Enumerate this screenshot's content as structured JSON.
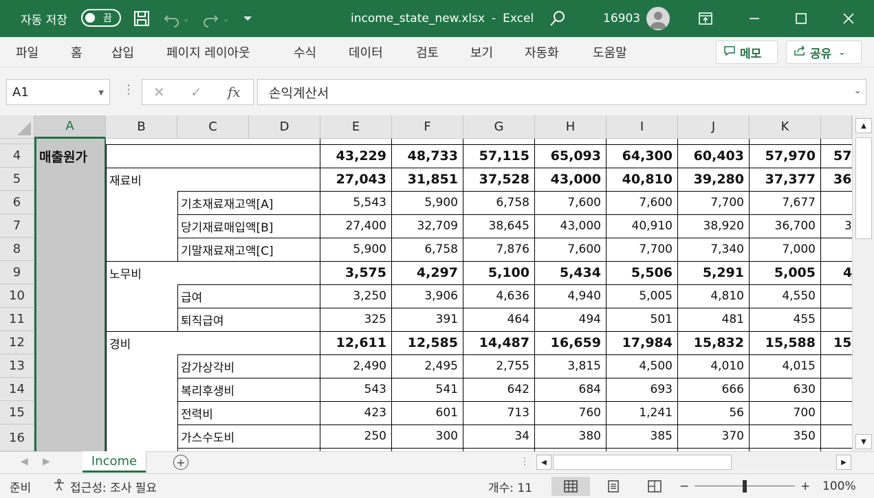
{
  "titlebar": {
    "autosave_label": "자동 저장",
    "autosave_state": "끔",
    "filename": "income_state_new.xlsx",
    "separator": "-",
    "app_name": "Excel",
    "user_count": "16903"
  },
  "ribbon": {
    "tabs": [
      "파일",
      "홈",
      "삽입",
      "페이지 레이아웃",
      "수식",
      "데이터",
      "검토",
      "보기",
      "자동화",
      "도움말"
    ],
    "memo_label": "메모",
    "share_label": "공유"
  },
  "formula_bar": {
    "name_box": "A1",
    "fx_label": "fx",
    "formula": "손익계산서"
  },
  "columns": [
    "A",
    "B",
    "C",
    "D",
    "E",
    "F",
    "G",
    "H",
    "I",
    "J",
    "K"
  ],
  "rows": [
    "4",
    "5",
    "6",
    "7",
    "8",
    "9",
    "10",
    "11",
    "12",
    "13",
    "14",
    "15",
    "16"
  ],
  "sheet": {
    "r4": {
      "label": "매출원가",
      "values": [
        "43,229",
        "48,733",
        "57,115",
        "65,093",
        "64,300",
        "60,403",
        "57,970",
        "57"
      ]
    },
    "r5": {
      "label": "재료비",
      "values": [
        "27,043",
        "31,851",
        "37,528",
        "43,000",
        "40,810",
        "39,280",
        "37,377",
        "36"
      ]
    },
    "r6": {
      "label": "기초재료재고액[A]",
      "values": [
        "5,543",
        "5,900",
        "6,758",
        "7,600",
        "7,600",
        "7,700",
        "7,677",
        ""
      ]
    },
    "r7": {
      "label": "당기재료매입액[B]",
      "values": [
        "27,400",
        "32,709",
        "38,645",
        "43,000",
        "40,910",
        "38,920",
        "36,700",
        "3"
      ]
    },
    "r8": {
      "label": "기말재료재고액[C]",
      "values": [
        "5,900",
        "6,758",
        "7,876",
        "7,600",
        "7,700",
        "7,340",
        "7,000",
        ""
      ]
    },
    "r9": {
      "label": "노무비",
      "values": [
        "3,575",
        "4,297",
        "5,100",
        "5,434",
        "5,506",
        "5,291",
        "5,005",
        "4"
      ]
    },
    "r10": {
      "label": "급여",
      "values": [
        "3,250",
        "3,906",
        "4,636",
        "4,940",
        "5,005",
        "4,810",
        "4,550",
        ""
      ]
    },
    "r11": {
      "label": "퇴직급여",
      "values": [
        "325",
        "391",
        "464",
        "494",
        "501",
        "481",
        "455",
        ""
      ]
    },
    "r12": {
      "label": "경비",
      "values": [
        "12,611",
        "12,585",
        "14,487",
        "16,659",
        "17,984",
        "15,832",
        "15,588",
        "15"
      ]
    },
    "r13": {
      "label": "감가상각비",
      "values": [
        "2,490",
        "2,495",
        "2,755",
        "3,815",
        "4,500",
        "4,010",
        "4,015",
        ""
      ]
    },
    "r14": {
      "label": "복리후생비",
      "values": [
        "543",
        "541",
        "642",
        "684",
        "693",
        "666",
        "630",
        ""
      ]
    },
    "r15": {
      "label": "전력비",
      "values": [
        "423",
        "601",
        "713",
        "760",
        "1,241",
        "56",
        "700",
        ""
      ]
    },
    "r16": {
      "label": "가스수도비",
      "values": [
        "250",
        "300",
        "34",
        "380",
        "385",
        "370",
        "350",
        ""
      ]
    }
  },
  "tabs": {
    "sheet_name": "Income",
    "add_sheet": "+"
  },
  "statusbar": {
    "ready": "준비",
    "accessibility": "접근성: 조사 필요",
    "count": "개수: 11",
    "zoom_minus": "−",
    "zoom_plus": "+",
    "zoom": "100%"
  },
  "colors": {
    "excel_green": "#217346",
    "header_gray": "#e6e6e6",
    "selected_col": "#c8c8c8"
  },
  "icons": {
    "save": "save-icon",
    "undo": "undo-icon",
    "redo": "redo-icon",
    "search": "search-icon"
  }
}
